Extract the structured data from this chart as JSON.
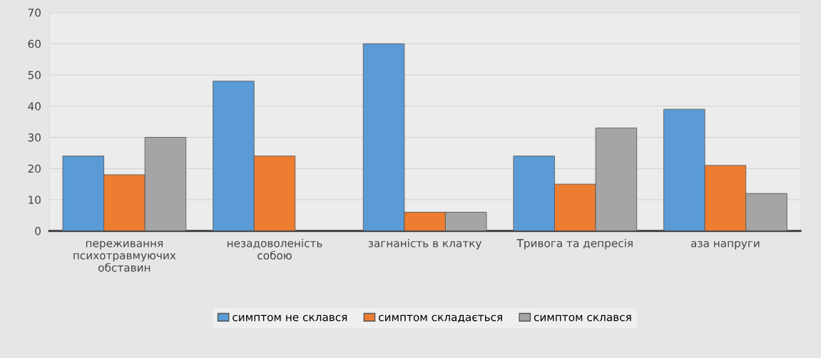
{
  "chart_data": {
    "type": "bar",
    "categories": [
      "переживання\nпсихотравмуючих\nобставин",
      "незадоволеність\nсобою",
      "загнаність в клатку",
      "Тривога та депресія",
      "аза напруги"
    ],
    "series": [
      {
        "name": "симптом не склався",
        "color": "#5b9bd5",
        "values": [
          24,
          48,
          60,
          24,
          39
        ]
      },
      {
        "name": "симптом складається",
        "color": "#ed7d31",
        "values": [
          18,
          24,
          6,
          15,
          21
        ]
      },
      {
        "name": "симптом склався",
        "color": "#a5a5a5",
        "values": [
          30,
          null,
          6,
          33,
          12
        ]
      }
    ],
    "ylim": [
      0,
      70
    ],
    "yticks": [
      0,
      10,
      20,
      30,
      40,
      50,
      60,
      70
    ],
    "grid": "y",
    "legend": "bottom"
  }
}
